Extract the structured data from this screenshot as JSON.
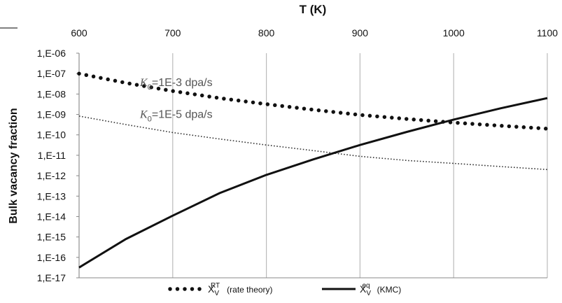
{
  "chart_data": {
    "type": "line",
    "x_label": "T (K)",
    "y_label": "Bulk vacancy fraction",
    "x": [
      600,
      650,
      700,
      750,
      800,
      850,
      900,
      950,
      1000,
      1050,
      1100
    ],
    "xlim": [
      600,
      1100
    ],
    "xticks": [
      600,
      700,
      800,
      900,
      1000,
      1100
    ],
    "log_y": true,
    "ylim": [
      1e-17,
      1e-06
    ],
    "yticks": [
      {
        "value": 1e-06,
        "label": "1,E-06"
      },
      {
        "value": 1e-07,
        "label": "1,E-07"
      },
      {
        "value": 1e-08,
        "label": "1,E-08"
      },
      {
        "value": 1e-09,
        "label": "1,E-09"
      },
      {
        "value": 1e-10,
        "label": "1,E-10"
      },
      {
        "value": 1e-11,
        "label": "1,E-11"
      },
      {
        "value": 1e-12,
        "label": "1,E-12"
      },
      {
        "value": 1e-13,
        "label": "1,E-13"
      },
      {
        "value": 1e-14,
        "label": "1,E-14"
      },
      {
        "value": 1e-15,
        "label": "1,E-15"
      },
      {
        "value": 1e-16,
        "label": "1,E-16"
      },
      {
        "value": 1e-17,
        "label": "1,E-17"
      }
    ],
    "grid": "x",
    "series": [
      {
        "symbol": {
          "base": "X",
          "sub": "V",
          "sup": "RT"
        },
        "name": "(rate theory)",
        "style": "dots",
        "color": "#111111",
        "values": [
          1e-07,
          3.5e-08,
          1.4e-08,
          6.3e-09,
          3.2e-09,
          1.7e-09,
          9.5e-10,
          6e-10,
          4e-10,
          2.8e-10,
          2e-10
        ]
      },
      {
        "style": "fine-dots",
        "color": "#333333",
        "values": [
          8.3e-10,
          3.2e-10,
          1.3e-10,
          6.3e-11,
          3.2e-11,
          1.7e-11,
          8.9e-12,
          5.6e-12,
          4e-12,
          2.8e-12,
          2e-12
        ]
      },
      {
        "symbol": {
          "base": "X",
          "sub": "V",
          "sup": "eq"
        },
        "name": "(KMC)",
        "style": "solid",
        "color": "#111111",
        "values": [
          3.2e-17,
          7.9e-16,
          1.1e-14,
          1.4e-13,
          1.1e-12,
          6.3e-12,
          3.2e-11,
          1.4e-10,
          5.6e-10,
          2e-09,
          6.3e-09
        ]
      }
    ],
    "annotations": [
      {
        "base": "K",
        "sub": "0",
        "rest": "=1E-3 dpa/s"
      },
      {
        "base": "K",
        "sub": "0",
        "rest": "=1E-5 dpa/s"
      }
    ]
  }
}
